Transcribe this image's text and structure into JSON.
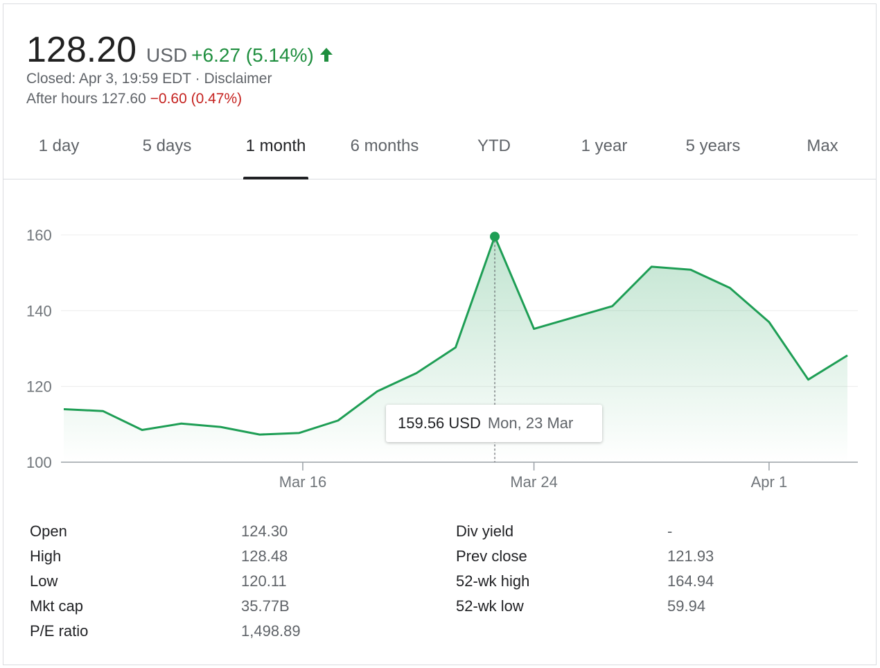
{
  "quote": {
    "price": "128.20",
    "currency": "USD",
    "change": "+6.27 (5.14%)",
    "status": "Closed: Apr 3, 19:59 EDT",
    "separator": "·",
    "disclaimer": "Disclaimer",
    "after_hours_label": "After hours",
    "after_hours_price": "127.60",
    "after_hours_change": "−0.60 (0.47%)"
  },
  "colors": {
    "positive": "#1e8e3e",
    "negative": "#c5221f",
    "line": "#1e9e55"
  },
  "tabs": [
    {
      "label": "1 day"
    },
    {
      "label": "5 days"
    },
    {
      "label": "1 month",
      "active": true
    },
    {
      "label": "6 months"
    },
    {
      "label": "YTD"
    },
    {
      "label": "1 year"
    },
    {
      "label": "5 years"
    },
    {
      "label": "Max"
    }
  ],
  "chart_data": {
    "type": "area",
    "ylim": [
      100,
      160
    ],
    "yticks": [
      "100",
      "120",
      "140",
      "160"
    ],
    "xlim": [
      0,
      20.6
    ],
    "x_tick_labels": [
      {
        "label": "Mar 16",
        "x": 6.1
      },
      {
        "label": "Mar 24",
        "x": 12.0
      },
      {
        "label": "Apr 1",
        "x": 18.0
      }
    ],
    "series": [
      {
        "values": [
          {
            "x": 0,
            "y": 114.0
          },
          {
            "x": 1,
            "y": 113.5
          },
          {
            "x": 2,
            "y": 108.5
          },
          {
            "x": 3,
            "y": 110.2
          },
          {
            "x": 4,
            "y": 109.3
          },
          {
            "x": 5,
            "y": 107.3
          },
          {
            "x": 6,
            "y": 107.7
          },
          {
            "x": 7,
            "y": 111.0
          },
          {
            "x": 8,
            "y": 118.7
          },
          {
            "x": 9,
            "y": 123.5
          },
          {
            "x": 10,
            "y": 130.3
          },
          {
            "x": 11,
            "y": 159.56
          },
          {
            "x": 12,
            "y": 135.2
          },
          {
            "x": 13,
            "y": 138.2
          },
          {
            "x": 14,
            "y": 141.2
          },
          {
            "x": 15,
            "y": 151.6
          },
          {
            "x": 16,
            "y": 150.8
          },
          {
            "x": 17,
            "y": 146.0
          },
          {
            "x": 18,
            "y": 137.0
          },
          {
            "x": 19,
            "y": 121.8
          },
          {
            "x": 20,
            "y": 128.2
          }
        ]
      }
    ],
    "highlight": {
      "index": 11,
      "value": "159.56 USD",
      "date": "Mon, 23 Mar"
    },
    "grid": true,
    "legend": "none"
  },
  "stats": {
    "left": [
      {
        "label": "Open",
        "value": "124.30"
      },
      {
        "label": "High",
        "value": "128.48"
      },
      {
        "label": "Low",
        "value": "120.11"
      },
      {
        "label": "Mkt cap",
        "value": "35.77B"
      },
      {
        "label": "P/E ratio",
        "value": "1,498.89"
      }
    ],
    "right": [
      {
        "label": "Div yield",
        "value": "-"
      },
      {
        "label": "Prev close",
        "value": "121.93"
      },
      {
        "label": "52-wk high",
        "value": "164.94"
      },
      {
        "label": "52-wk low",
        "value": "59.94"
      }
    ]
  }
}
